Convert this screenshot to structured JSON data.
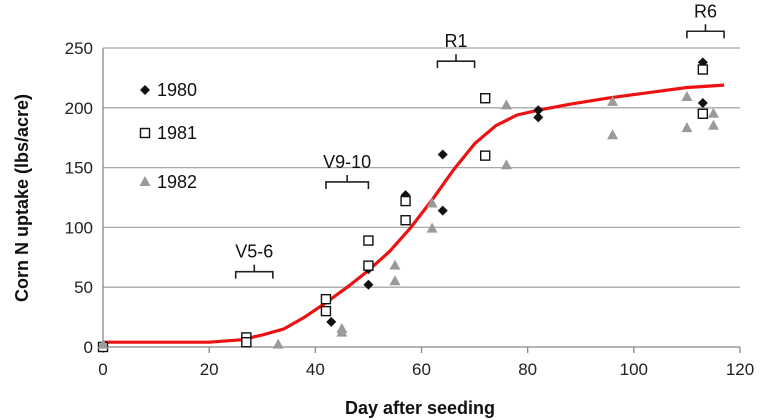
{
  "chart_data": {
    "type": "scatter",
    "title": "",
    "xlabel": "Day after seeding",
    "ylabel": "Corn N uptake (lbs/acre)",
    "xlim": [
      0,
      120
    ],
    "ylim": [
      0,
      250
    ],
    "xticks": [
      0,
      20,
      40,
      60,
      80,
      100,
      120
    ],
    "yticks": [
      0,
      50,
      100,
      150,
      200,
      250
    ],
    "grid": "horizontal",
    "legend_position": "top-left",
    "series": [
      {
        "name": "1980",
        "marker": "filled-diamond",
        "color": "#111111",
        "points": [
          [
            0,
            1
          ],
          [
            27,
            5
          ],
          [
            43,
            21
          ],
          [
            50,
            52
          ],
          [
            50,
            65
          ],
          [
            57,
            127
          ],
          [
            64,
            161
          ],
          [
            64,
            114
          ],
          [
            82,
            198
          ],
          [
            82,
            192
          ],
          [
            113,
            238
          ],
          [
            113,
            204
          ]
        ]
      },
      {
        "name": "1981",
        "marker": "open-square",
        "color": "#111111",
        "points": [
          [
            0,
            0
          ],
          [
            27,
            8
          ],
          [
            27,
            4
          ],
          [
            42,
            40
          ],
          [
            42,
            30
          ],
          [
            50,
            89
          ],
          [
            50,
            68
          ],
          [
            57,
            122
          ],
          [
            57,
            106
          ],
          [
            72,
            208
          ],
          [
            72,
            160
          ],
          [
            113,
            232
          ],
          [
            113,
            195
          ]
        ]
      },
      {
        "name": "1982",
        "marker": "filled-triangle",
        "color": "#999999",
        "points": [
          [
            0,
            2
          ],
          [
            33,
            2
          ],
          [
            45,
            15
          ],
          [
            45,
            12
          ],
          [
            55,
            68
          ],
          [
            55,
            55
          ],
          [
            62,
            120
          ],
          [
            62,
            99
          ],
          [
            76,
            202
          ],
          [
            76,
            152
          ],
          [
            96,
            205
          ],
          [
            96,
            177
          ],
          [
            110,
            209
          ],
          [
            110,
            183
          ],
          [
            115,
            195
          ],
          [
            115,
            185
          ]
        ]
      },
      {
        "name": "",
        "type": "line",
        "color": "#ee1111",
        "points": [
          [
            0,
            4
          ],
          [
            10,
            4
          ],
          [
            20,
            4
          ],
          [
            26,
            6
          ],
          [
            30,
            10
          ],
          [
            34,
            15
          ],
          [
            38,
            25
          ],
          [
            42,
            37
          ],
          [
            46,
            50
          ],
          [
            50,
            64
          ],
          [
            54,
            80
          ],
          [
            58,
            100
          ],
          [
            62,
            123
          ],
          [
            66,
            148
          ],
          [
            70,
            170
          ],
          [
            74,
            185
          ],
          [
            78,
            194
          ],
          [
            82,
            198
          ],
          [
            88,
            203
          ],
          [
            95,
            208
          ],
          [
            100,
            211
          ],
          [
            105,
            214
          ],
          [
            110,
            217
          ],
          [
            117,
            219
          ]
        ]
      }
    ],
    "stages": [
      {
        "label": "V5-6",
        "x1": 25,
        "x2": 32,
        "y": 63
      },
      {
        "label": "V9-10",
        "x1": 42,
        "x2": 50,
        "y": 138
      },
      {
        "label": "R1",
        "x1": 63,
        "x2": 70,
        "y": 239
      },
      {
        "label": "R6",
        "x1": 110,
        "x2": 117,
        "y": 264
      }
    ]
  }
}
